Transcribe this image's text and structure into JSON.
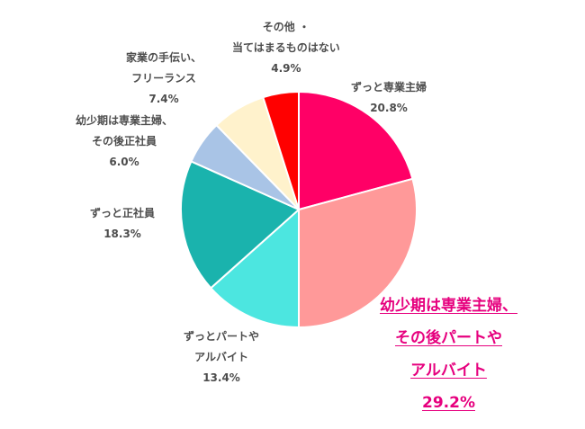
{
  "chart_data": {
    "type": "pie",
    "slices": [
      {
        "label_lines": [
          "ずっと専業主婦"
        ],
        "value": 20.8,
        "value_label": "20.8%",
        "color": "#ff0066"
      },
      {
        "label_lines": [
          "幼少期は専業主婦、",
          "その後パートや",
          "アルバイト"
        ],
        "value": 29.2,
        "value_label": "29.2%",
        "color": "#ff9999",
        "highlight": true
      },
      {
        "label_lines": [
          "ずっとパートや",
          "アルバイト"
        ],
        "value": 13.4,
        "value_label": "13.4%",
        "color": "#4ce6e0"
      },
      {
        "label_lines": [
          "ずっと正社員"
        ],
        "value": 18.3,
        "value_label": "18.3%",
        "color": "#1ab3ad"
      },
      {
        "label_lines": [
          "幼少期は専業主婦、",
          "その後正社員"
        ],
        "value": 6.0,
        "value_label": "6.0%",
        "color": "#a9c4e6"
      },
      {
        "label_lines": [
          "家業の手伝い、",
          "フリーランス"
        ],
        "value": 7.4,
        "value_label": "7.4%",
        "color": "#fff2cc"
      },
      {
        "label_lines": [
          "その他 ・",
          "当てはまるものはない"
        ],
        "value": 4.9,
        "value_label": "4.9%",
        "color": "#ff0000"
      }
    ],
    "start_angle_deg": 0,
    "direction": "clockwise",
    "slice_border_color": "#ffffff",
    "highlight_color": "#e6007e"
  }
}
